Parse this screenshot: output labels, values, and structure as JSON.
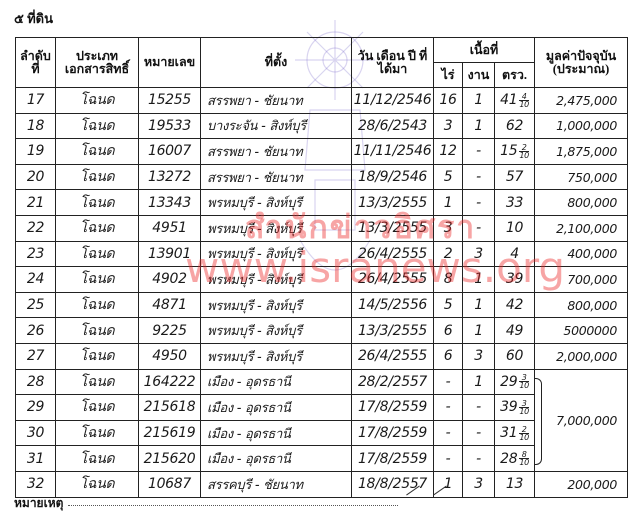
{
  "section_title": "๕ ที่ดิน",
  "headers": {
    "no": "ลำดับ ที่",
    "doc_type": "ประเภท เอกสารสิทธิ์",
    "number": "หมายเลข",
    "location": "ที่ตั้ง",
    "date": "วัน เดือน ปี ที่ได้มา",
    "area": "เนื้อที่",
    "rai": "ไร่",
    "ngan": "งาน",
    "wa": "ตรว.",
    "value": "มูลค่าปัจจุบัน (ประมาณ)"
  },
  "rows": [
    {
      "no": "17",
      "type": "โฉนด",
      "number": "15255",
      "location": "สรรพยา - ชัยนาท",
      "date": "11/12/2546",
      "rai": "16",
      "ngan": "1",
      "wa": "41",
      "wa_num": "4",
      "wa_den": "10",
      "value": "2,475,000"
    },
    {
      "no": "18",
      "type": "โฉนด",
      "number": "19533",
      "location": "บางระจัน - สิงห์บุรี",
      "date": "28/6/2543",
      "rai": "3",
      "ngan": "1",
      "wa": "62",
      "wa_num": "",
      "wa_den": "",
      "value": "1,000,000"
    },
    {
      "no": "19",
      "type": "โฉนด",
      "number": "16007",
      "location": "สรรพยา - ชัยนาท",
      "date": "11/11/2546",
      "rai": "12",
      "ngan": "-",
      "wa": "15",
      "wa_num": "2",
      "wa_den": "10",
      "value": "1,875,000"
    },
    {
      "no": "20",
      "type": "โฉนด",
      "number": "13272",
      "location": "สรรพยา - ชัยนาท",
      "date": "18/9/2546",
      "rai": "5",
      "ngan": "-",
      "wa": "57",
      "wa_num": "",
      "wa_den": "",
      "value": "750,000"
    },
    {
      "no": "21",
      "type": "โฉนด",
      "number": "13343",
      "location": "พรหมบุรี - สิงห์บุรี",
      "date": "13/3/2555",
      "rai": "1",
      "ngan": "-",
      "wa": "33",
      "wa_num": "",
      "wa_den": "",
      "value": "800,000"
    },
    {
      "no": "22",
      "type": "โฉนด",
      "number": "4951",
      "location": "พรหมบุรี - สิงห์บุรี",
      "date": "13/3/2555",
      "rai": "3",
      "ngan": "-",
      "wa": "10",
      "wa_num": "",
      "wa_den": "",
      "value": "2,100,000"
    },
    {
      "no": "23",
      "type": "โฉนด",
      "number": "13901",
      "location": "พรหมบุรี - สิงห์บุรี",
      "date": "26/4/2555",
      "rai": "2",
      "ngan": "3",
      "wa": "4",
      "wa_num": "",
      "wa_den": "",
      "value": "400,000"
    },
    {
      "no": "24",
      "type": "โฉนด",
      "number": "4902",
      "location": "พรหมบุรี - สิงห์บุรี",
      "date": "26/4/2555",
      "rai": "8",
      "ngan": "1",
      "wa": "39",
      "wa_num": "",
      "wa_den": "",
      "value": "700,000"
    },
    {
      "no": "25",
      "type": "โฉนด",
      "number": "4871",
      "location": "พรหมบุรี - สิงห์บุรี",
      "date": "14/5/2556",
      "rai": "5",
      "ngan": "1",
      "wa": "42",
      "wa_num": "",
      "wa_den": "",
      "value": "800,000"
    },
    {
      "no": "26",
      "type": "โฉนด",
      "number": "9225",
      "location": "พรหมบุรี - สิงห์บุรี",
      "date": "13/3/2555",
      "rai": "6",
      "ngan": "1",
      "wa": "49",
      "wa_num": "",
      "wa_den": "",
      "value": "5000000"
    },
    {
      "no": "27",
      "type": "โฉนด",
      "number": "4950",
      "location": "พรหมบุรี - สิงห์บุรี",
      "date": "26/4/2555",
      "rai": "6",
      "ngan": "3",
      "wa": "60",
      "wa_num": "",
      "wa_den": "",
      "value": "2,000,000"
    },
    {
      "no": "28",
      "type": "โฉนด",
      "number": "164222",
      "location": "เมือง - อุดรธานี",
      "date": "28/2/2557",
      "rai": "-",
      "ngan": "1",
      "wa": "29",
      "wa_num": "3",
      "wa_den": "10"
    },
    {
      "no": "29",
      "type": "โฉนด",
      "number": "215618",
      "location": "เมือง - อุดรธานี",
      "date": "17/8/2559",
      "rai": "-",
      "ngan": "-",
      "wa": "39",
      "wa_num": "3",
      "wa_den": "10"
    },
    {
      "no": "30",
      "type": "โฉนด",
      "number": "215619",
      "location": "เมือง - อุดรธานี",
      "date": "17/8/2559",
      "rai": "-",
      "ngan": "-",
      "wa": "31",
      "wa_num": "2",
      "wa_den": "10"
    },
    {
      "no": "31",
      "type": "โฉนด",
      "number": "215620",
      "location": "เมือง - อุดรธานี",
      "date": "17/8/2559",
      "rai": "-",
      "ngan": "-",
      "wa": "28",
      "wa_num": "8",
      "wa_den": "10"
    },
    {
      "no": "32",
      "type": "โฉนด",
      "number": "10687",
      "location": "สรรคบุรี - ชัยนาท",
      "date": "18/8/2557",
      "rai": "1",
      "ngan": "3",
      "wa": "13",
      "wa_num": "",
      "wa_den": "",
      "value": "200,000"
    }
  ],
  "group_value_rows_28_31": "7,000,000",
  "note_label": "หมายเหตุ",
  "watermark": {
    "line1": "สำนักข่าวอิศรา",
    "line2": "www.isranews.org",
    "color": "#eb2828"
  }
}
